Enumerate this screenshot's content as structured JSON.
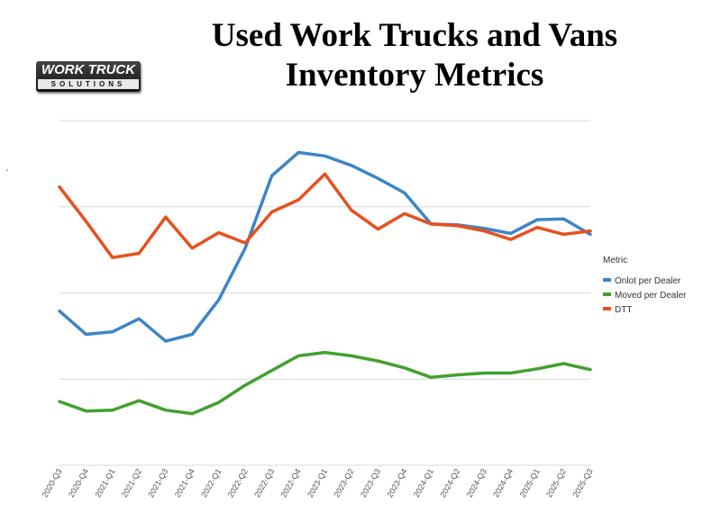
{
  "title_line1": "Used Work Trucks and Vans",
  "title_line2": "Inventory Metrics",
  "logo": {
    "top": "WORK TRUCK",
    "bottom": "SOLUTIONS"
  },
  "colors": {
    "onlot": "#3d85c6",
    "moved": "#43a02e",
    "dtt": "#e8501e",
    "grid": "#d9d9d9"
  },
  "chart_data": {
    "type": "line",
    "title": "Used Work Trucks and Vans Inventory Metrics",
    "categories": [
      "2020-Q3",
      "2020-Q4",
      "2021-Q1",
      "2021-Q2",
      "2021-Q3",
      "2021-Q4",
      "2022-Q1",
      "2022-Q2",
      "2022-Q3",
      "2022-Q4",
      "2023-Q1",
      "2023-Q2",
      "2023-Q3",
      "2023-Q4",
      "2024-Q1",
      "2024-Q2",
      "2024-Q3",
      "2024-Q4",
      "2025-Q1",
      "2025-Q2",
      "2025-Q3"
    ],
    "ylim": [
      0,
      400
    ],
    "legend_title": "Metric",
    "legend_position": "right",
    "series": [
      {
        "name": "Onlot per Dealer",
        "color_key": "onlot",
        "values": [
          179,
          152,
          155,
          170,
          144,
          152,
          192,
          252,
          336,
          363,
          359,
          348,
          333,
          316,
          280,
          279,
          275,
          269,
          285,
          286,
          268
        ]
      },
      {
        "name": "Moved per Dealer",
        "color_key": "moved",
        "values": [
          74,
          63,
          64,
          75,
          64,
          60,
          73,
          93,
          110,
          127,
          131,
          127,
          121,
          113,
          102,
          105,
          107,
          107,
          112,
          118,
          111
        ]
      },
      {
        "name": "DTT",
        "color_key": "dtt",
        "values": [
          323,
          283,
          241,
          246,
          288,
          252,
          270,
          258,
          294,
          308,
          338,
          296,
          274,
          292,
          280,
          278,
          272,
          262,
          276,
          268,
          272
        ]
      }
    ]
  }
}
